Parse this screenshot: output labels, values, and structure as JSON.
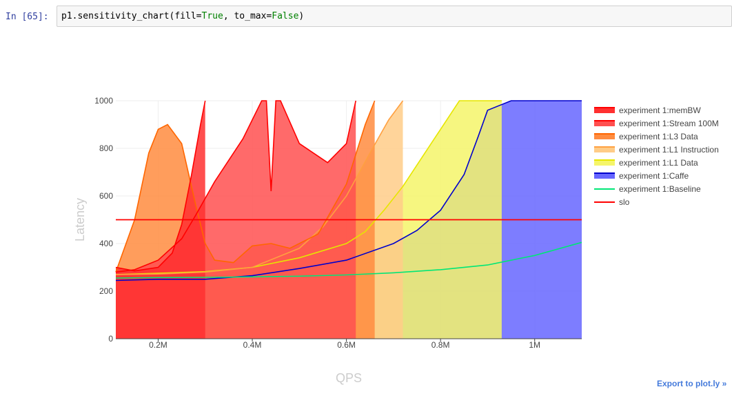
{
  "cell": {
    "prompt": "In [65]:",
    "code_fn": "p1.sensitivity_chart(fill=",
    "code_true": "True",
    "code_mid": ", to_max=",
    "code_false": "False",
    "code_end": ")"
  },
  "export_label": "Export to plot.ly »",
  "chart_data": {
    "type": "area",
    "xlabel": "QPS",
    "ylabel": "Latency",
    "xlim": [
      110000,
      1100000
    ],
    "ylim": [
      0,
      1000
    ],
    "xticks": [
      {
        "v": 200000,
        "label": "0.2M"
      },
      {
        "v": 400000,
        "label": "0.4M"
      },
      {
        "v": 600000,
        "label": "0.6M"
      },
      {
        "v": 800000,
        "label": "0.8M"
      },
      {
        "v": 1000000,
        "label": "1M"
      }
    ],
    "yticks": [
      {
        "v": 0,
        "label": "0"
      },
      {
        "v": 200,
        "label": "200"
      },
      {
        "v": 400,
        "label": "400"
      },
      {
        "v": 600,
        "label": "600"
      },
      {
        "v": 800,
        "label": "800"
      },
      {
        "v": 1000,
        "label": "1000"
      }
    ],
    "grid": true,
    "legend_position": "right",
    "series": [
      {
        "name": "experiment 1:Baseline",
        "color": "#00e676",
        "fill": "none",
        "x": [
          110000,
          200000,
          300000,
          400000,
          500000,
          600000,
          700000,
          800000,
          900000,
          1000000,
          1100000
        ],
        "y": [
          255,
          257,
          258,
          260,
          263,
          268,
          277,
          290,
          310,
          350,
          405
        ]
      },
      {
        "name": "experiment 1:Caffe",
        "color": "#0000cc",
        "fill": "#6666ff",
        "x": [
          110000,
          200000,
          300000,
          400000,
          500000,
          600000,
          700000,
          750000,
          800000,
          850000,
          880000,
          900000,
          950000,
          1100000
        ],
        "y": [
          245,
          250,
          250,
          265,
          295,
          330,
          400,
          455,
          540,
          690,
          850,
          960,
          1000,
          1000
        ]
      },
      {
        "name": "experiment 1:L1 Data",
        "color": "#e6e600",
        "fill": "#f5f56a",
        "x": [
          110000,
          200000,
          300000,
          400000,
          500000,
          600000,
          640000,
          680000,
          720000,
          760000,
          800000,
          840000,
          880000,
          930000
        ],
        "y": [
          270,
          275,
          282,
          300,
          340,
          400,
          450,
          540,
          640,
          760,
          880,
          1000,
          1000,
          1000
        ]
      },
      {
        "name": "experiment 1:L1 Instruction",
        "color": "#ffa040",
        "fill": "#ffcc88",
        "x": [
          110000,
          200000,
          300000,
          400000,
          500000,
          550000,
          600000,
          650000,
          690000,
          720000
        ],
        "y": [
          270,
          272,
          280,
          300,
          380,
          470,
          600,
          780,
          920,
          1000
        ]
      },
      {
        "name": "experiment 1:L3 Data",
        "color": "#ff6600",
        "fill": "#ff8c40",
        "x": [
          110000,
          150000,
          180000,
          200000,
          220000,
          250000,
          280000,
          300000,
          320000,
          360000,
          400000,
          440000,
          480000,
          540000,
          600000,
          640000,
          660000
        ],
        "y": [
          280,
          500,
          780,
          880,
          900,
          820,
          560,
          400,
          330,
          320,
          390,
          400,
          380,
          440,
          650,
          900,
          1000
        ]
      },
      {
        "name": "experiment 1:Stream 100M",
        "color": "#ff0000",
        "fill": "#ff5050",
        "x": [
          110000,
          150000,
          200000,
          250000,
          280000,
          320000,
          380000,
          420000,
          430000,
          440000,
          450000,
          460000,
          500000,
          560000,
          600000,
          620000
        ],
        "y": [
          280,
          290,
          330,
          420,
          520,
          660,
          840,
          1000,
          1000,
          620,
          1000,
          1000,
          820,
          740,
          820,
          1000
        ]
      },
      {
        "name": "experiment 1:memBW",
        "color": "#ff0000",
        "fill": "#ff3030",
        "x": [
          110000,
          150000,
          200000,
          230000,
          250000,
          270000,
          290000,
          300000
        ],
        "y": [
          300,
          285,
          300,
          360,
          480,
          680,
          900,
          1000
        ]
      },
      {
        "name": "slo",
        "color": "#ff0000",
        "fill": "none",
        "x": [
          110000,
          1100000
        ],
        "y": [
          500,
          500
        ]
      }
    ],
    "legend": [
      {
        "name": "experiment 1:memBW",
        "color": "#ff0000",
        "fill": "#ff3030"
      },
      {
        "name": "experiment 1:Stream 100M",
        "color": "#ff0000",
        "fill": "#ff5050"
      },
      {
        "name": "experiment 1:L3 Data",
        "color": "#ff6600",
        "fill": "#ff8c40"
      },
      {
        "name": "experiment 1:L1 Instruction",
        "color": "#ffa040",
        "fill": "#ffcc88"
      },
      {
        "name": "experiment 1:L1 Data",
        "color": "#e6e600",
        "fill": "#f5f56a"
      },
      {
        "name": "experiment 1:Caffe",
        "color": "#0000cc",
        "fill": "#6666ff"
      },
      {
        "name": "experiment 1:Baseline",
        "color": "#00e676",
        "fill": "none"
      },
      {
        "name": "slo",
        "color": "#ff0000",
        "fill": "none"
      }
    ]
  }
}
